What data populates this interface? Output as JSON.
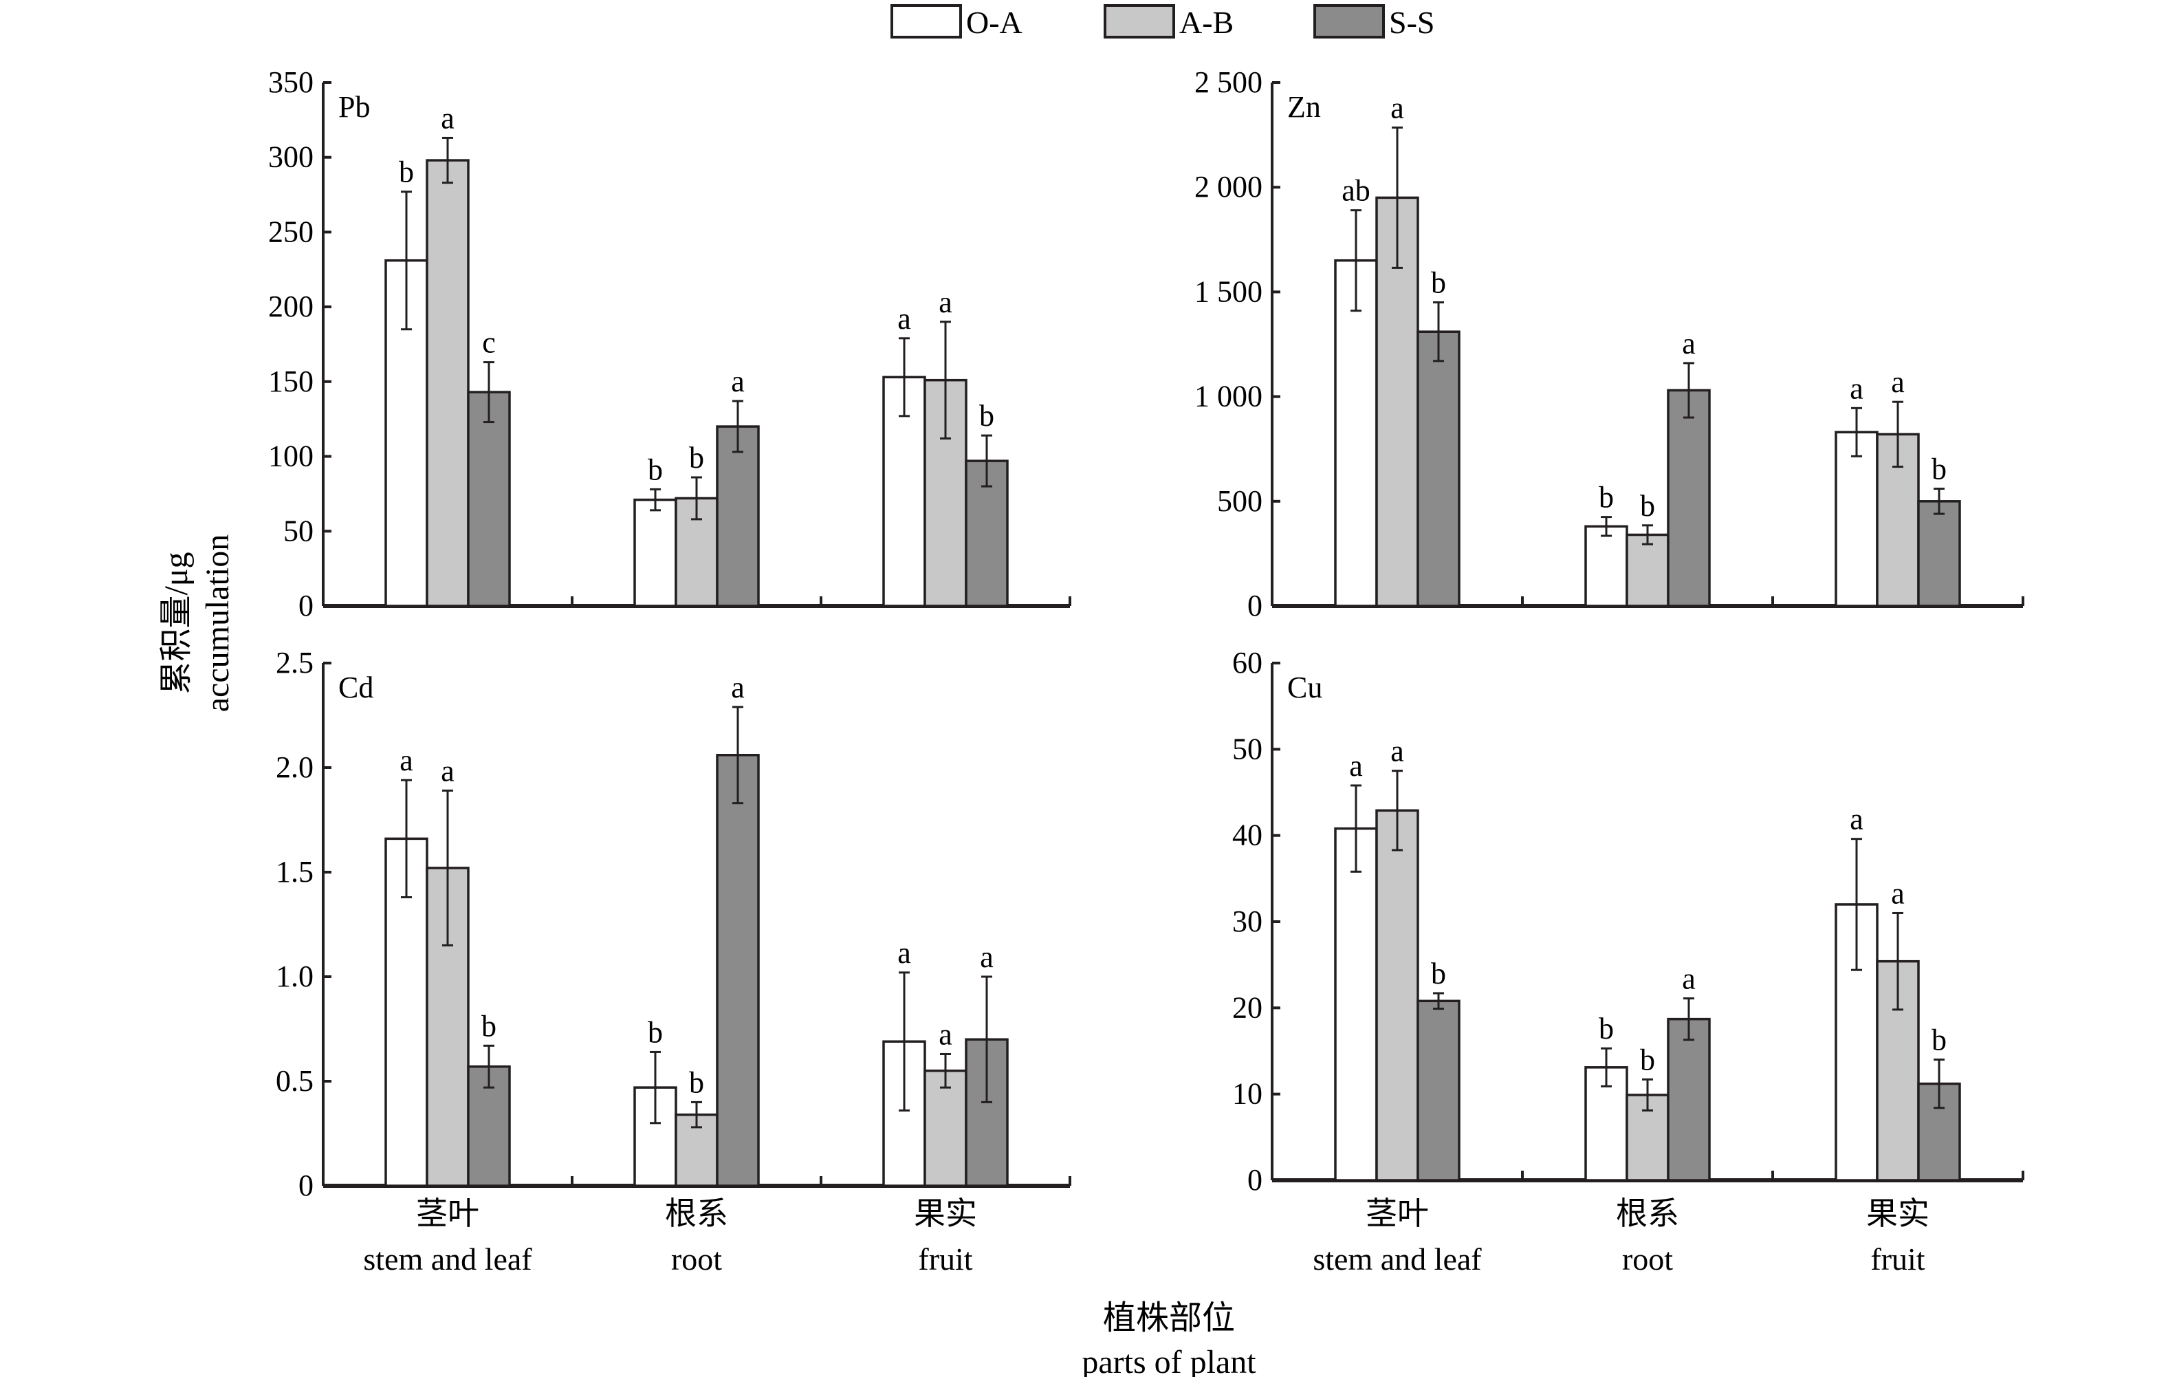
{
  "chart_data": [
    {
      "type": "bar",
      "title": "Pb",
      "categories": [
        "茎叶\nstem and leaf",
        "根系\nroot",
        "果实\nfruit"
      ],
      "ylim": [
        0,
        350
      ],
      "yticks": [
        0,
        50,
        100,
        150,
        200,
        250,
        300,
        350
      ],
      "ytick_labels": [
        "0",
        "50",
        "100",
        "150",
        "200",
        "250",
        "300",
        "350"
      ],
      "series": [
        {
          "name": "O-A",
          "values": [
            231,
            71,
            153
          ],
          "errors": [
            46,
            7,
            26
          ],
          "letters": [
            "b",
            "b",
            "a"
          ]
        },
        {
          "name": "A-B",
          "values": [
            298,
            72,
            151
          ],
          "errors": [
            15,
            14,
            39
          ],
          "letters": [
            "a",
            "b",
            "a"
          ]
        },
        {
          "name": "S-S",
          "values": [
            143,
            120,
            97
          ],
          "errors": [
            20,
            17,
            17
          ],
          "letters": [
            "c",
            "a",
            "b"
          ]
        }
      ]
    },
    {
      "type": "bar",
      "title": "Zn",
      "categories": [
        "茎叶\nstem and leaf",
        "根系\nroot",
        "果实\nfruit"
      ],
      "ylim": [
        0,
        2500
      ],
      "yticks": [
        0,
        500,
        1000,
        1500,
        2000,
        2500
      ],
      "ytick_labels": [
        "0",
        "500",
        "1 000",
        "1 500",
        "2 000",
        "2 500"
      ],
      "series": [
        {
          "name": "O-A",
          "values": [
            1650,
            380,
            830
          ],
          "errors": [
            240,
            45,
            115
          ],
          "letters": [
            "ab",
            "b",
            "a"
          ]
        },
        {
          "name": "A-B",
          "values": [
            1950,
            340,
            820
          ],
          "errors": [
            335,
            45,
            155
          ],
          "letters": [
            "a",
            "b",
            "a"
          ]
        },
        {
          "name": "S-S",
          "values": [
            1310,
            1030,
            500
          ],
          "errors": [
            140,
            130,
            60
          ],
          "letters": [
            "b",
            "a",
            "b"
          ]
        }
      ]
    },
    {
      "type": "bar",
      "title": "Cd",
      "categories": [
        "茎叶\nstem and leaf",
        "根系\nroot",
        "果实\nfruit"
      ],
      "ylim": [
        0,
        2.5
      ],
      "yticks": [
        0,
        0.5,
        1.0,
        1.5,
        2.0,
        2.5
      ],
      "ytick_labels": [
        "0",
        "0.5",
        "1.0",
        "1.5",
        "2.0",
        "2.5"
      ],
      "series": [
        {
          "name": "O-A",
          "values": [
            1.66,
            0.47,
            0.69
          ],
          "errors": [
            0.28,
            0.17,
            0.33
          ],
          "letters": [
            "a",
            "b",
            "a"
          ]
        },
        {
          "name": "A-B",
          "values": [
            1.52,
            0.34,
            0.55
          ],
          "errors": [
            0.37,
            0.06,
            0.08
          ],
          "letters": [
            "a",
            "b",
            "a"
          ]
        },
        {
          "name": "S-S",
          "values": [
            0.57,
            2.06,
            0.7
          ],
          "errors": [
            0.1,
            0.23,
            0.3
          ],
          "letters": [
            "b",
            "a",
            "a"
          ]
        }
      ]
    },
    {
      "type": "bar",
      "title": "Cu",
      "categories": [
        "茎叶\nstem and leaf",
        "根系\nroot",
        "果实\nfruit"
      ],
      "ylim": [
        0,
        60
      ],
      "yticks": [
        0,
        10,
        20,
        30,
        40,
        50,
        60
      ],
      "ytick_labels": [
        "0",
        "10",
        "20",
        "30",
        "40",
        "50",
        "60"
      ],
      "series": [
        {
          "name": "O-A",
          "values": [
            40.8,
            13.1,
            32.0
          ],
          "errors": [
            5.0,
            2.2,
            7.6
          ],
          "letters": [
            "a",
            "b",
            "a"
          ]
        },
        {
          "name": "A-B",
          "values": [
            42.9,
            9.9,
            25.4
          ],
          "errors": [
            4.6,
            1.8,
            5.6
          ],
          "letters": [
            "a",
            "b",
            "a"
          ]
        },
        {
          "name": "S-S",
          "values": [
            20.8,
            18.7,
            11.2
          ],
          "errors": [
            0.9,
            2.4,
            2.8
          ],
          "letters": [
            "b",
            "a",
            "b"
          ]
        }
      ]
    }
  ],
  "legend": {
    "placement": "top-center",
    "items": [
      {
        "name": "O-A",
        "color": "#ffffff"
      },
      {
        "name": "A-B",
        "color": "#c8c8c8"
      },
      {
        "name": "S-S",
        "color": "#8c8b8b"
      }
    ]
  },
  "colors": {
    "ink": "#231f20",
    "O-A": "#ffffff",
    "A-B": "#c8c8c8",
    "S-S": "#8c8b8b"
  },
  "categories": [
    {
      "zh": "茎叶",
      "en": "stem and leaf"
    },
    {
      "zh": "根系",
      "en": "root"
    },
    {
      "zh": "果实",
      "en": "fruit"
    }
  ],
  "ylabel": {
    "zh": "累积量/μg",
    "en": "accumulation"
  },
  "xlabel": {
    "zh": "植株部位",
    "en": "parts of plant"
  }
}
